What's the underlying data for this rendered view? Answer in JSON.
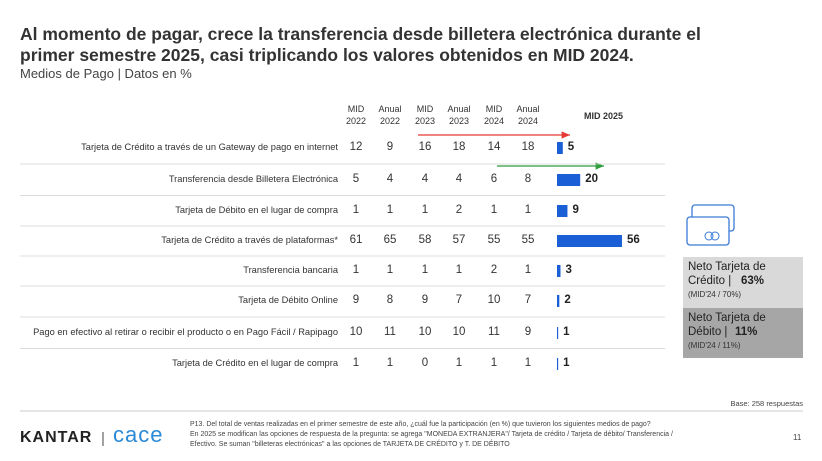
{
  "header": {
    "title_lines": [
      "Al momento de pagar, crece la transferencia desde billetera electrónica durante el",
      "primer semestre 2025, casi triplicando los valores obtenidos en MID 2024."
    ],
    "subtitle": "Medios de Pago | Datos en %"
  },
  "table": {
    "columns": [
      {
        "top": "MID",
        "bottom": "2022"
      },
      {
        "top": "Anual",
        "bottom": "2022"
      },
      {
        "top": "MID",
        "bottom": "2023"
      },
      {
        "top": "Anual",
        "bottom": "2023"
      },
      {
        "top": "MID",
        "bottom": "2024"
      },
      {
        "top": "Anual",
        "bottom": "2024"
      }
    ],
    "bar_column": "MID 2025",
    "rows": [
      {
        "label": "Tarjeta de Crédito a través de un Gateway de pago en internet",
        "values": [
          12,
          9,
          16,
          18,
          14,
          18
        ],
        "mid2025": 5
      },
      {
        "label": "Transferencia desde Billetera Electrónica",
        "values": [
          5,
          4,
          4,
          4,
          6,
          8
        ],
        "mid2025": 20
      },
      {
        "label": "Tarjeta de Débito en el lugar de compra",
        "values": [
          1,
          1,
          1,
          2,
          1,
          1
        ],
        "mid2025": 9
      },
      {
        "label": "Tarjeta de Crédito a través de plataformas*",
        "values": [
          61,
          65,
          58,
          57,
          55,
          55
        ],
        "mid2025": 56
      },
      {
        "label": "Transferencia bancaria",
        "values": [
          1,
          1,
          1,
          1,
          2,
          1
        ],
        "mid2025": 3
      },
      {
        "label": "Tarjeta de Débito Online",
        "values": [
          9,
          8,
          9,
          7,
          10,
          7
        ],
        "mid2025": 2
      },
      {
        "label": "Pago en efectivo al retirar o recibir el producto o en Pago Fácil / Rapipago",
        "values": [
          10,
          11,
          10,
          10,
          11,
          9
        ],
        "mid2025": 1
      },
      {
        "label": "Tarjeta de Crédito en el lugar de compra",
        "values": [
          1,
          1,
          0,
          1,
          1,
          1
        ],
        "mid2025": 1
      }
    ]
  },
  "net_boxes": [
    {
      "line1": "Neto Tarjeta de",
      "line2": "Crédito |",
      "value": "63%",
      "note": "(MID'24 / 70%)"
    },
    {
      "line1": "Neto Tarjeta de",
      "line2": "Débito |",
      "value": "11%",
      "note": "(MID'24 / 11%)"
    }
  ],
  "base": "Base: 258 respuestas",
  "footer": {
    "brand": "KANTAR",
    "partner": "cace",
    "page": "11",
    "notes": [
      "P13. Del total de ventas realizadas en el primer semestre de este año, ¿cuál fue la participación (en %) que tuvieron los siguientes medios de pago?",
      "En 2025 se modifican las opciones de respuesta de la pregunta: se agrega \"MONEDA EXTRANJERA\"/ Tarjeta de crédito / Tarjeta de débito/ Transferencia /",
      "Efectivo. Se suman \"billeteras electrónicas\" a las opciones de TARJETA DE CRÉDITO y T. DE DÉBITO"
    ]
  }
}
